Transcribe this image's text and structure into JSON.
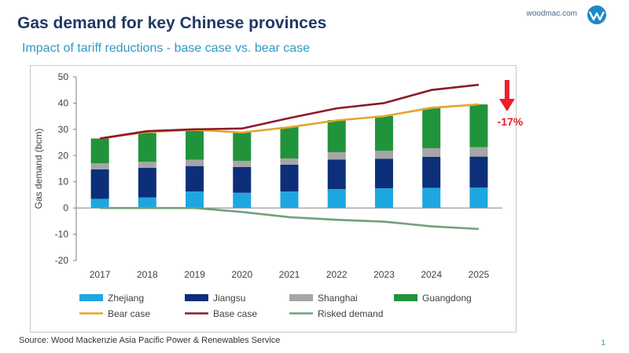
{
  "header": {
    "title": "Gas demand for key Chinese provinces",
    "subtitle": "Impact of tariff reductions - base case vs. bear case",
    "brand": "woodmac.com"
  },
  "footer": {
    "source": "Source: Wood Mackenzie Asia Pacific Power & Renewables Service",
    "page_number": "1"
  },
  "colors": {
    "zhejiang": "#1ea6e0",
    "jiangsu": "#0d2f79",
    "shanghai": "#a6a6a6",
    "guangdong": "#21933b",
    "bear": "#e3a62b",
    "base": "#8b1a2e",
    "risked": "#6fa07c",
    "arrow": "#e8202a",
    "title": "#1f3864",
    "subtitle": "#2e9ac6"
  },
  "chart_data": {
    "type": "bar",
    "stacked": true,
    "categories": [
      "2017",
      "2018",
      "2019",
      "2020",
      "2021",
      "2022",
      "2023",
      "2024",
      "2025"
    ],
    "ylabel": "Gas demand (bcm)",
    "ylim": [
      -20,
      50
    ],
    "yticks": [
      -20,
      -10,
      0,
      10,
      20,
      30,
      40,
      50
    ],
    "series": [
      {
        "name": "Zhejiang",
        "kind": "bar",
        "values": [
          3.5,
          4.0,
          6.3,
          5.8,
          6.3,
          7.2,
          7.5,
          7.7,
          7.8
        ]
      },
      {
        "name": "Jiangsu",
        "kind": "bar",
        "values": [
          11.2,
          11.3,
          9.7,
          9.8,
          10.2,
          11.3,
          11.3,
          11.8,
          11.8
        ]
      },
      {
        "name": "Shanghai",
        "kind": "bar",
        "values": [
          2.3,
          2.3,
          2.4,
          2.4,
          2.4,
          2.8,
          3.0,
          3.3,
          3.6
        ]
      },
      {
        "name": "Guangdong",
        "kind": "bar",
        "values": [
          9.5,
          11.0,
          11.2,
          11.0,
          12.0,
          12.2,
          13.3,
          15.3,
          16.3
        ]
      },
      {
        "name": "Bear case",
        "kind": "line",
        "values": [
          26.5,
          29.0,
          29.8,
          28.8,
          30.8,
          33.4,
          35.0,
          38.2,
          39.5
        ]
      },
      {
        "name": "Base case",
        "kind": "line",
        "values": [
          26.5,
          29.3,
          30.0,
          30.3,
          34.3,
          38.0,
          40.0,
          45.0,
          47.0
        ]
      },
      {
        "name": "Risked demand",
        "kind": "line",
        "values": [
          0,
          0,
          0,
          -1.5,
          -3.5,
          -4.5,
          -5.2,
          -7.0,
          -8.0
        ]
      }
    ],
    "annotation": {
      "text": "-17%",
      "at_category": "2025"
    },
    "legend_position": "bottom"
  }
}
